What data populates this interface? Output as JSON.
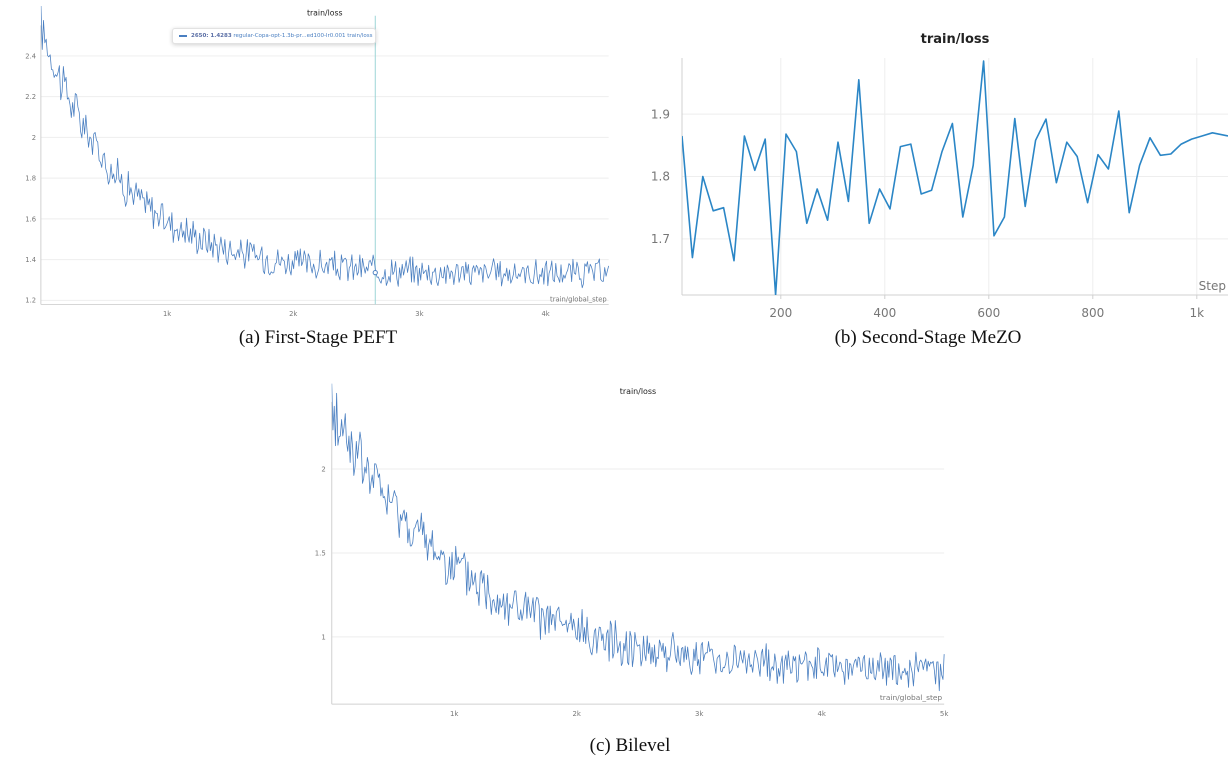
{
  "colors": {
    "series_a": "#4a7fc1",
    "series_b": "#2b86c6",
    "series_c": "#4a7fc1",
    "cursor": "#9ad4d6"
  },
  "panels": {
    "a": {
      "caption": "(a) First-Stage PEFT"
    },
    "b": {
      "caption": "(b) Second-Stage MeZO"
    },
    "c": {
      "caption": "(c) Bilevel"
    }
  },
  "tooltip": {
    "value": "2650: 1.4283",
    "run": "regular-Copa-opt-1.3b-pr...ed100-lr0.001 train/loss"
  },
  "chart_data": [
    {
      "id": "a",
      "type": "line",
      "title": "train/loss",
      "xlabel": "train/global_step",
      "ylabel": "",
      "xlim": [
        0,
        4500
      ],
      "ylim": [
        1.18,
        2.55
      ],
      "xticks": [
        {
          "v": 1000,
          "label": "1k"
        },
        {
          "v": 2000,
          "label": "2k"
        },
        {
          "v": 3000,
          "label": "3k"
        },
        {
          "v": 4000,
          "label": "4k"
        }
      ],
      "yticks": [
        {
          "v": 1.2,
          "label": "1.2"
        },
        {
          "v": 1.4,
          "label": "1.4"
        },
        {
          "v": 1.6,
          "label": "1.6"
        },
        {
          "v": 1.8,
          "label": "1.8"
        },
        {
          "v": 2.0,
          "label": "2"
        },
        {
          "v": 2.2,
          "label": "2.2"
        },
        {
          "v": 2.4,
          "label": "2.4"
        }
      ],
      "cursor_x": 2650,
      "grid": true,
      "trend": {
        "start": 2.55,
        "end": 1.33,
        "tau": 650,
        "noise": 0.06,
        "n": 430,
        "x0": 0,
        "x1": 4500
      },
      "series": [
        {
          "name": "regular-Copa-opt-1.3b-pr...ed100-lr0.001 train/loss"
        }
      ]
    },
    {
      "id": "b",
      "type": "line",
      "title": "train/loss",
      "xlabel": "Step",
      "ylabel": "",
      "xlim": [
        10,
        1060
      ],
      "ylim": [
        1.61,
        1.99
      ],
      "xticks": [
        {
          "v": 200,
          "label": "200"
        },
        {
          "v": 400,
          "label": "400"
        },
        {
          "v": 600,
          "label": "600"
        },
        {
          "v": 800,
          "label": "800"
        },
        {
          "v": 1000,
          "label": "1k"
        }
      ],
      "yticks": [
        {
          "v": 1.7,
          "label": "1.7"
        },
        {
          "v": 1.8,
          "label": "1.8"
        },
        {
          "v": 1.9,
          "label": "1.9"
        }
      ],
      "grid": true,
      "x": [
        10,
        30,
        50,
        70,
        90,
        110,
        130,
        150,
        170,
        190,
        210,
        230,
        250,
        270,
        290,
        310,
        330,
        350,
        370,
        390,
        410,
        430,
        450,
        470,
        490,
        510,
        530,
        550,
        570,
        590,
        610,
        630,
        650,
        670,
        690,
        710,
        730,
        750,
        770,
        790,
        810,
        830,
        850,
        870,
        890,
        910,
        930,
        950,
        970,
        990,
        1010,
        1030,
        1060
      ],
      "y": [
        1.865,
        1.67,
        1.8,
        1.745,
        1.75,
        1.665,
        1.865,
        1.81,
        1.86,
        1.61,
        1.868,
        1.84,
        1.725,
        1.78,
        1.73,
        1.855,
        1.76,
        1.955,
        1.725,
        1.78,
        1.748,
        1.848,
        1.852,
        1.772,
        1.778,
        1.84,
        1.885,
        1.735,
        1.818,
        1.985,
        1.705,
        1.735,
        1.893,
        1.752,
        1.858,
        1.892,
        1.79,
        1.855,
        1.832,
        1.758,
        1.835,
        1.812,
        1.905,
        1.742,
        1.818,
        1.862,
        1.834,
        1.836,
        1.852,
        1.86,
        1.865,
        1.87,
        1.865
      ]
    },
    {
      "id": "c",
      "type": "line",
      "title": "train/loss",
      "xlabel": "train/global_step",
      "ylabel": "",
      "xlim": [
        0,
        5000
      ],
      "ylim": [
        0.6,
        2.4
      ],
      "xticks": [
        {
          "v": 1000,
          "label": "1k"
        },
        {
          "v": 2000,
          "label": "2k"
        },
        {
          "v": 3000,
          "label": "3k"
        },
        {
          "v": 4000,
          "label": "4k"
        },
        {
          "v": 5000,
          "label": "5k"
        }
      ],
      "yticks": [
        {
          "v": 1.0,
          "label": "1"
        },
        {
          "v": 1.5,
          "label": "1.5"
        },
        {
          "v": 2.0,
          "label": "2"
        }
      ],
      "grid": true,
      "trend": {
        "start": 2.35,
        "end": 0.78,
        "tau": 1100,
        "noise": 0.09,
        "n": 500,
        "x0": 0,
        "x1": 5000
      },
      "series": [
        {
          "name": "train/loss"
        }
      ]
    }
  ]
}
